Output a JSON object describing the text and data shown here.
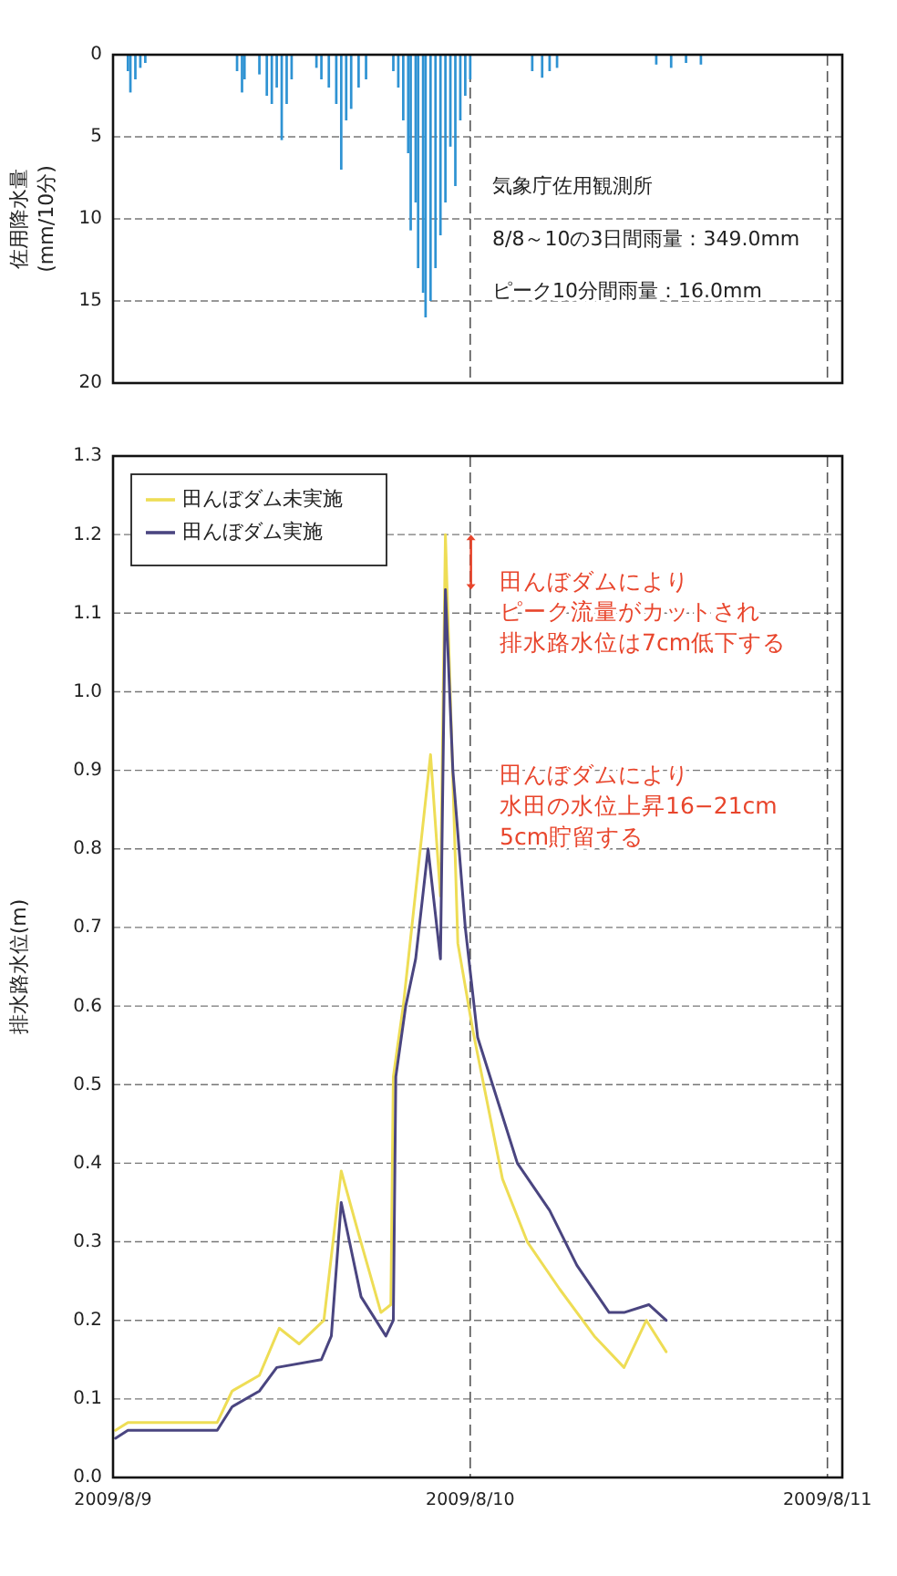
{
  "chart_data": [
    {
      "type": "bar",
      "ylabel": "佐用降水量\n(mm/10分)",
      "color": "#2f93d3",
      "ylim": [
        20,
        0
      ],
      "yticks": [
        0,
        5,
        10,
        15,
        20
      ],
      "xlim": [
        "2009-08-09T00:00",
        "2009-08-11T01:00"
      ],
      "xticks": [
        {
          "value": "2009-08-09",
          "label": null
        },
        {
          "value": "2009-08-10",
          "label": null
        },
        {
          "value": "2009-08-11",
          "label": null
        }
      ],
      "tick_labels": "y",
      "grid": true,
      "x": [
        "2009-08-09T01:00",
        "2009-08-09T01:10",
        "2009-08-09T01:30",
        "2009-08-09T01:50",
        "2009-08-09T02:10",
        "2009-08-09T08:20",
        "2009-08-09T08:40",
        "2009-08-09T08:50",
        "2009-08-09T09:50",
        "2009-08-09T10:20",
        "2009-08-09T10:40",
        "2009-08-09T11:00",
        "2009-08-09T11:20",
        "2009-08-09T11:40",
        "2009-08-09T12:00",
        "2009-08-09T13:40",
        "2009-08-09T14:00",
        "2009-08-09T14:30",
        "2009-08-09T15:00",
        "2009-08-09T15:20",
        "2009-08-09T15:40",
        "2009-08-09T16:00",
        "2009-08-09T16:30",
        "2009-08-09T17:00",
        "2009-08-09T18:50",
        "2009-08-09T19:10",
        "2009-08-09T19:30",
        "2009-08-09T19:50",
        "2009-08-09T20:00",
        "2009-08-09T20:20",
        "2009-08-09T20:30",
        "2009-08-09T20:50",
        "2009-08-09T21:00",
        "2009-08-09T21:20",
        "2009-08-09T21:40",
        "2009-08-09T22:00",
        "2009-08-09T22:20",
        "2009-08-09T22:40",
        "2009-08-09T23:00",
        "2009-08-09T23:20",
        "2009-08-09T23:40",
        "2009-08-10T00:00",
        "2009-08-10T04:10",
        "2009-08-10T04:50",
        "2009-08-10T05:20",
        "2009-08-10T05:50",
        "2009-08-10T12:30",
        "2009-08-10T13:30",
        "2009-08-10T14:30",
        "2009-08-10T15:30"
      ],
      "values": [
        1.0,
        2.3,
        1.5,
        0.8,
        0.5,
        1.0,
        2.3,
        1.5,
        1.2,
        2.5,
        3.0,
        2.0,
        5.2,
        3.0,
        1.5,
        0.8,
        1.5,
        2.0,
        3.0,
        7.0,
        4.0,
        3.3,
        2.0,
        1.5,
        1.0,
        2.0,
        4.0,
        6.0,
        10.7,
        9.0,
        13.0,
        14.5,
        16.0,
        15.0,
        13.0,
        11.0,
        9.0,
        5.6,
        8.0,
        4.0,
        2.5,
        1.5,
        1.0,
        1.4,
        1.0,
        0.8,
        0.6,
        0.8,
        0.5,
        0.6
      ],
      "annotations": [
        "気象庁佐用観測所",
        "8/8～10の3日間雨量：349.0mm",
        "ピーク10分間雨量：16.0mm"
      ]
    },
    {
      "type": "line",
      "ylabel": "排水路水位(m)",
      "ylim": [
        0,
        1.3
      ],
      "yticks": [
        {
          "value": 0,
          "label": "0.0"
        },
        0.1,
        0.2,
        0.3,
        0.4,
        0.5,
        0.6,
        0.7,
        0.8,
        0.9,
        {
          "value": 1,
          "label": "1.0"
        },
        1.1,
        1.2,
        1.3
      ],
      "xlim": [
        "2009-08-09T00:00",
        "2009-08-11T01:00"
      ],
      "xticks": [
        {
          "value": "2009-08-09",
          "label": "2009/8/9"
        },
        {
          "value": "2009-08-10",
          "label": "2009/8/10"
        },
        {
          "value": "2009-08-11",
          "label": "2009/8/11"
        }
      ],
      "grid": true,
      "legend": "top left",
      "series": [
        {
          "name": "田んぼダム未実施",
          "color": "#eedd55",
          "x": [
            "2009-08-09T00:10",
            "2009-08-09T01:00",
            "2009-08-09T07:00",
            "2009-08-09T08:00",
            "2009-08-09T09:50",
            "2009-08-09T11:10",
            "2009-08-09T12:30",
            "2009-08-09T14:10",
            "2009-08-09T15:20",
            "2009-08-09T16:30",
            "2009-08-09T18:00",
            "2009-08-09T18:40",
            "2009-08-09T18:50",
            "2009-08-09T19:30",
            "2009-08-09T21:20",
            "2009-08-09T22:00",
            "2009-08-09T22:20",
            "2009-08-09T23:10",
            "2009-08-10T00:10",
            "2009-08-10T02:10",
            "2009-08-10T03:50",
            "2009-08-10T06:00",
            "2009-08-10T08:20",
            "2009-08-10T10:20",
            "2009-08-10T11:50",
            "2009-08-10T13:10"
          ],
          "values": [
            0.06,
            0.07,
            0.07,
            0.11,
            0.13,
            0.19,
            0.17,
            0.2,
            0.39,
            0.31,
            0.21,
            0.22,
            0.51,
            0.6,
            0.92,
            0.74,
            1.2,
            0.68,
            0.57,
            0.38,
            0.3,
            0.24,
            0.18,
            0.14,
            0.2,
            0.16
          ]
        },
        {
          "name": "田んぼダム実施",
          "color": "#4a4580",
          "x": [
            "2009-08-09T00:10",
            "2009-08-09T01:00",
            "2009-08-09T07:00",
            "2009-08-09T08:00",
            "2009-08-09T09:50",
            "2009-08-09T11:00",
            "2009-08-09T14:00",
            "2009-08-09T14:40",
            "2009-08-09T15:20",
            "2009-08-09T16:40",
            "2009-08-09T18:20",
            "2009-08-09T18:50",
            "2009-08-09T19:00",
            "2009-08-09T19:40",
            "2009-08-09T20:20",
            "2009-08-09T21:10",
            "2009-08-09T22:00",
            "2009-08-09T22:20",
            "2009-08-09T22:50",
            "2009-08-09T23:40",
            "2009-08-10T00:30",
            "2009-08-10T03:10",
            "2009-08-10T05:20",
            "2009-08-10T07:10",
            "2009-08-10T09:20",
            "2009-08-10T10:20",
            "2009-08-10T12:00",
            "2009-08-10T13:10"
          ],
          "values": [
            0.05,
            0.06,
            0.06,
            0.09,
            0.11,
            0.14,
            0.15,
            0.18,
            0.35,
            0.23,
            0.18,
            0.2,
            0.51,
            0.6,
            0.66,
            0.8,
            0.66,
            1.13,
            0.9,
            0.7,
            0.56,
            0.4,
            0.34,
            0.27,
            0.21,
            0.21,
            0.22,
            0.2
          ]
        }
      ],
      "annotations": [
        "田んぼダムにより",
        "ピーク流量がカットされ",
        "排水路水位は7cm低下する",
        "田んぼダムにより",
        "水田の水位上昇16−21cm",
        "5cm貯留する"
      ]
    }
  ]
}
